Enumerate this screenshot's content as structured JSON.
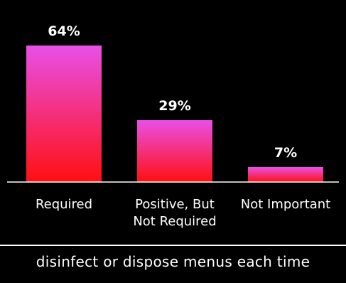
{
  "chart_data": {
    "type": "bar",
    "categories": [
      "Required",
      "Positive, But\nNot Required",
      "Not Important"
    ],
    "values": [
      64,
      29,
      7
    ],
    "value_labels": [
      "64%",
      "29%",
      "7%"
    ],
    "ylim": [
      0,
      70
    ],
    "grid": false,
    "legend": "none",
    "bar_gradient": {
      "top": "#e94fe8",
      "bottom": "#ff1010"
    }
  },
  "caption": "disinfect or dispose menus each time"
}
